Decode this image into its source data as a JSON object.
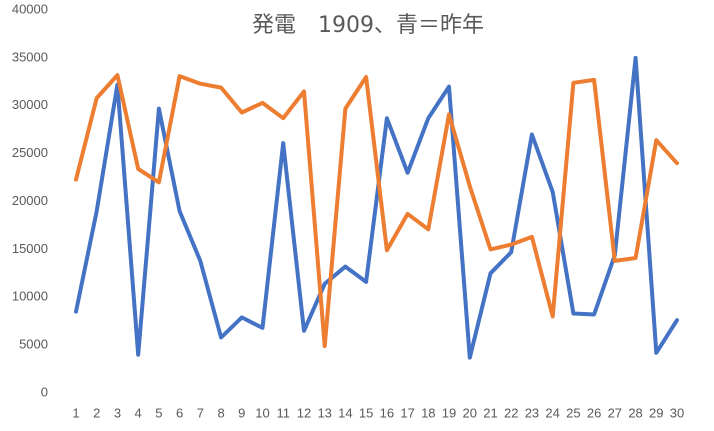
{
  "chart_data": {
    "type": "line",
    "title": "発電　1909、青＝昨年",
    "categories": [
      1,
      2,
      3,
      4,
      5,
      6,
      7,
      8,
      9,
      10,
      11,
      12,
      13,
      14,
      15,
      16,
      17,
      18,
      19,
      20,
      21,
      22,
      23,
      24,
      25,
      26,
      27,
      28,
      29,
      30
    ],
    "series": [
      {
        "color": "#4472c4",
        "values": [
          8500,
          19000,
          32200,
          4000,
          29700,
          19000,
          13800,
          5800,
          7900,
          6800,
          26100,
          6500,
          11400,
          13200,
          11600,
          28700,
          23000,
          28700,
          32000,
          3700,
          12500,
          14700,
          27000,
          21000,
          8300,
          8200,
          14400,
          35000,
          4200,
          7600
        ]
      },
      {
        "color": "#ed7d31",
        "values": [
          22300,
          30800,
          33200,
          23400,
          22000,
          33100,
          32300,
          31900,
          29300,
          30300,
          28700,
          31500,
          4900,
          29700,
          33000,
          14900,
          18700,
          17100,
          29100,
          21600,
          15000,
          15500,
          16300,
          8000,
          32400,
          32700,
          13800,
          14100,
          26400,
          24000
        ]
      }
    ],
    "ylim": [
      0,
      40000
    ],
    "yticks": [
      0,
      5000,
      10000,
      15000,
      20000,
      25000,
      30000,
      35000,
      40000
    ],
    "grid": false
  }
}
